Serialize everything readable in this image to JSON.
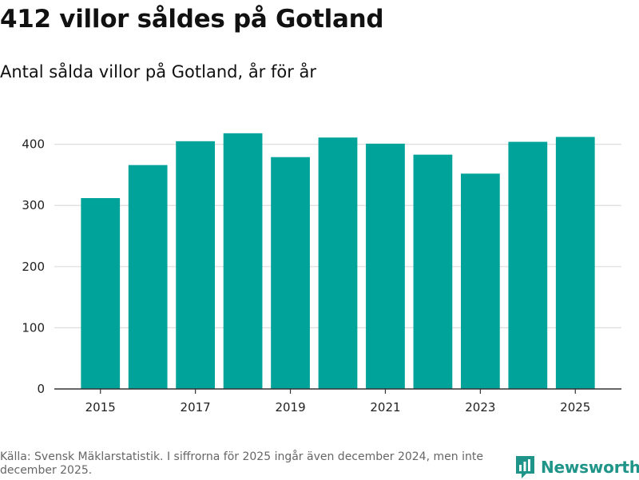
{
  "header": {
    "title": "412 villor såldes på Gotland",
    "subtitle": "Antal sålda villor på Gotland, år för år"
  },
  "chart_data": {
    "type": "bar",
    "title": "412 villor såldes på Gotland",
    "subtitle": "Antal sålda villor på Gotland, år för år",
    "xlabel": "",
    "ylabel": "",
    "categories": [
      "2015",
      "2016",
      "2017",
      "2018",
      "2019",
      "2020",
      "2021",
      "2022",
      "2023",
      "2024",
      "2025"
    ],
    "values": [
      312,
      366,
      405,
      418,
      379,
      411,
      401,
      383,
      352,
      404,
      412
    ],
    "x_tick_labels": [
      "2015",
      "2017",
      "2019",
      "2021",
      "2023",
      "2025"
    ],
    "ylim": [
      0,
      440
    ],
    "y_ticks": [
      0,
      100,
      200,
      300,
      400
    ],
    "grid": true,
    "bar_color": "#00a39a",
    "grid_color": "#dddddd"
  },
  "footer": {
    "source": "Källa: Svensk Mäklarstatistik. I siffrorna för 2025 ingår även december 2024, men inte december 2025.",
    "brand": "Newsworthy",
    "brand_color": "#1f9488",
    "brand_icon": "newsworthy-logo-icon"
  }
}
